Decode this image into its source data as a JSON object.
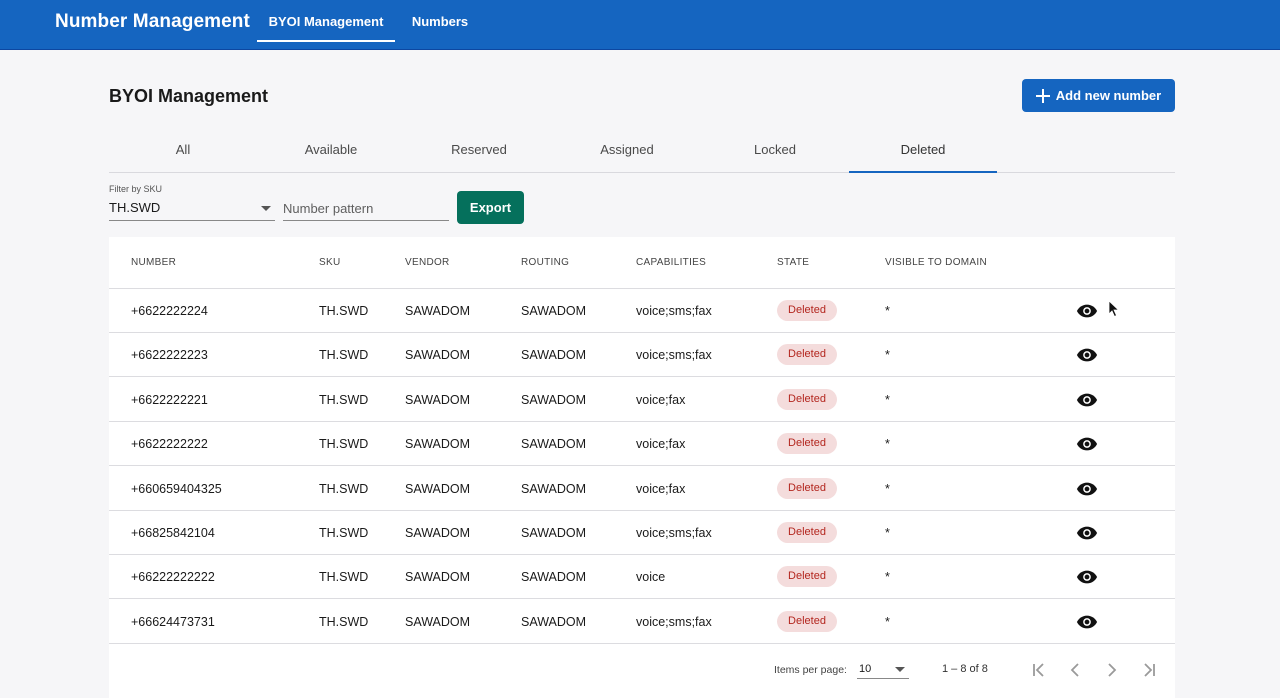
{
  "app": {
    "title": "Number Management",
    "nav": [
      "BYOI Management",
      "Numbers"
    ],
    "active_nav": "BYOI Management"
  },
  "page": {
    "title": "BYOI Management",
    "add_button_label": "Add new number"
  },
  "state_tabs": {
    "items": [
      "All",
      "Available",
      "Reserved",
      "Assigned",
      "Locked",
      "Deleted"
    ],
    "active": "Deleted"
  },
  "filters": {
    "sku_label": "Filter by SKU",
    "sku_value": "TH.SWD",
    "pattern_placeholder": "Number pattern",
    "export_label": "Export"
  },
  "table": {
    "columns": [
      "NUMBER",
      "SKU",
      "VENDOR",
      "ROUTING",
      "CAPABILITIES",
      "STATE",
      "VISIBLE TO DOMAIN"
    ],
    "rows": [
      {
        "number": "+6622222224",
        "sku": "TH.SWD",
        "vendor": "SAWADOM",
        "routing": "SAWADOM",
        "capabilities": "voice;sms;fax",
        "state": "Deleted",
        "visible": "*"
      },
      {
        "number": "+6622222223",
        "sku": "TH.SWD",
        "vendor": "SAWADOM",
        "routing": "SAWADOM",
        "capabilities": "voice;sms;fax",
        "state": "Deleted",
        "visible": "*"
      },
      {
        "number": "+6622222221",
        "sku": "TH.SWD",
        "vendor": "SAWADOM",
        "routing": "SAWADOM",
        "capabilities": "voice;fax",
        "state": "Deleted",
        "visible": "*"
      },
      {
        "number": "+6622222222",
        "sku": "TH.SWD",
        "vendor": "SAWADOM",
        "routing": "SAWADOM",
        "capabilities": "voice;fax",
        "state": "Deleted",
        "visible": "*"
      },
      {
        "number": "+660659404325",
        "sku": "TH.SWD",
        "vendor": "SAWADOM",
        "routing": "SAWADOM",
        "capabilities": "voice;fax",
        "state": "Deleted",
        "visible": "*"
      },
      {
        "number": "+66825842104",
        "sku": "TH.SWD",
        "vendor": "SAWADOM",
        "routing": "SAWADOM",
        "capabilities": "voice;sms;fax",
        "state": "Deleted",
        "visible": "*"
      },
      {
        "number": "+66222222222",
        "sku": "TH.SWD",
        "vendor": "SAWADOM",
        "routing": "SAWADOM",
        "capabilities": "voice",
        "state": "Deleted",
        "visible": "*"
      },
      {
        "number": "+66624473731",
        "sku": "TH.SWD",
        "vendor": "SAWADOM",
        "routing": "SAWADOM",
        "capabilities": "voice;sms;fax",
        "state": "Deleted",
        "visible": "*"
      }
    ],
    "row_action_icon": "eye-icon"
  },
  "paginator": {
    "items_per_page_label": "Items per page:",
    "page_size": "10",
    "range": "1 – 8 of 8",
    "icons": [
      "first-page-icon",
      "prev-page-icon",
      "next-page-icon",
      "last-page-icon"
    ]
  },
  "colors": {
    "app_bar": "#1565c0",
    "primary_button": "#1565c0",
    "export_button": "#05705c",
    "deleted_badge_bg": "#f4dcdc",
    "deleted_badge_text": "#b3261e"
  }
}
